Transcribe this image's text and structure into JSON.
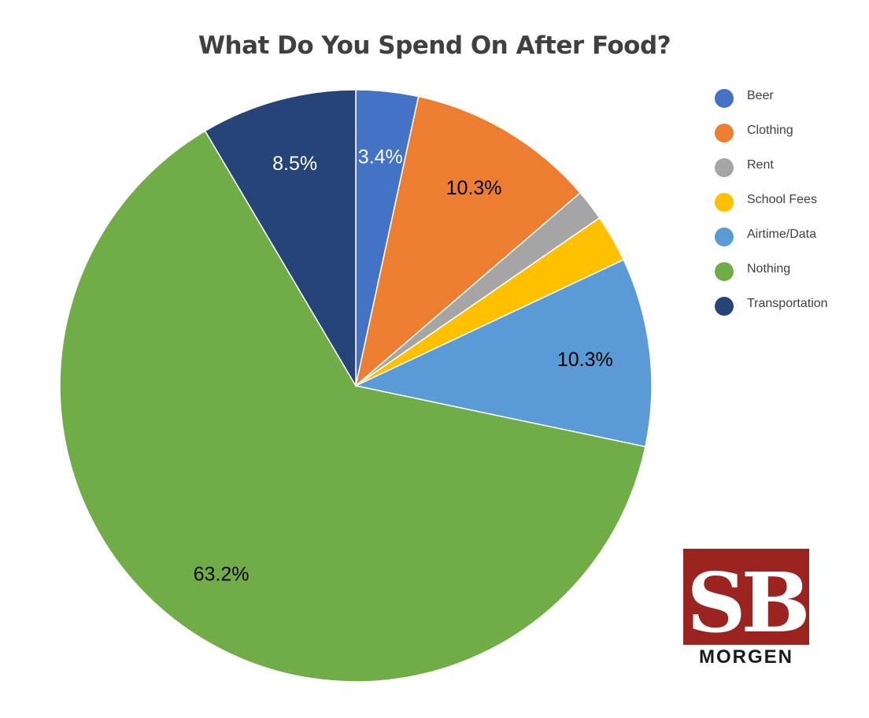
{
  "chart_data": {
    "type": "pie",
    "title": "What Do You Spend On After Food?",
    "start_angle_deg": 0,
    "direction": "clockwise",
    "legend_position": "right",
    "slices": [
      {
        "label": "Beer",
        "value": 3.4,
        "data_label": "3.4%",
        "color": "#4472c4",
        "label_color": "#ffffff"
      },
      {
        "label": "Clothing",
        "value": 10.3,
        "data_label": "10.3%",
        "color": "#ed7d31",
        "label_color": "#000000"
      },
      {
        "label": "Rent",
        "value": 1.7,
        "data_label": "",
        "color": "#a5a5a5",
        "label_color": "#000000"
      },
      {
        "label": "School Fees",
        "value": 2.6,
        "data_label": "",
        "color": "#ffc000",
        "label_color": "#000000"
      },
      {
        "label": "Airtime/Data",
        "value": 10.3,
        "data_label": "10.3%",
        "color": "#5b9bd5",
        "label_color": "#000000"
      },
      {
        "label": "Nothing",
        "value": 63.2,
        "data_label": "63.2%",
        "color": "#70ad47",
        "label_color": "#000000"
      },
      {
        "label": "Transportation",
        "value": 8.5,
        "data_label": "8.5%",
        "color": "#264478",
        "label_color": "#ffffff"
      }
    ]
  },
  "logo": {
    "monogram": "SB",
    "word": "MORGEN",
    "color": "#9b2320"
  }
}
